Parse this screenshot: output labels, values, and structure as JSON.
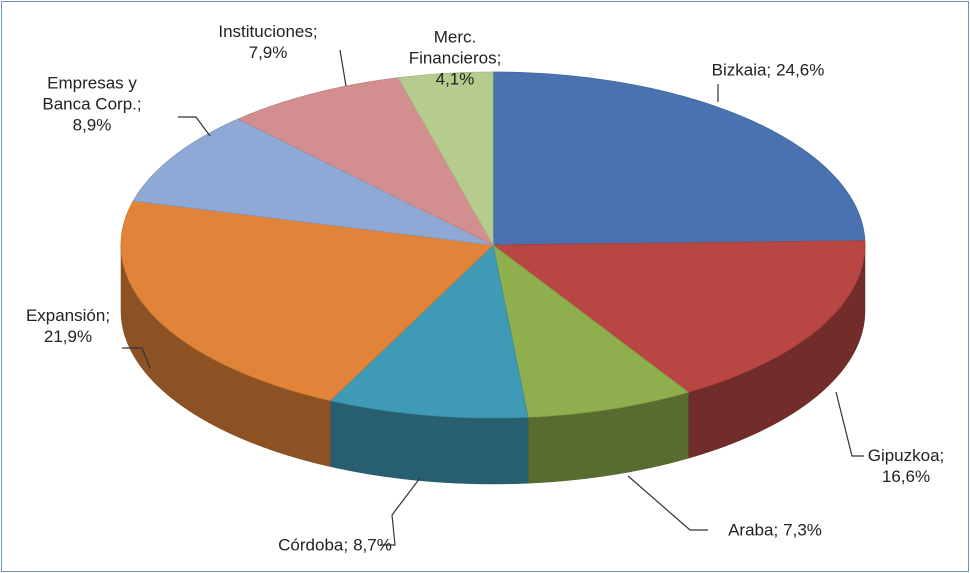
{
  "chart_data": {
    "type": "pie3d",
    "categories": [
      "Bizkaia;",
      "Gipuzkoa;",
      "Araba;",
      "Córdoba;",
      "Expansión;",
      "Empresas y\nBanca Corp.;",
      "Instituciones;",
      "Merc.\nFinancieros;"
    ],
    "values": [
      24.6,
      16.6,
      7.3,
      8.7,
      21.9,
      8.9,
      7.9,
      4.1
    ],
    "value_labels": [
      "24,6%",
      "16,6%",
      "7,3%",
      "8,7%",
      "21,9%",
      "8,9%",
      "7,9%",
      "4,1%"
    ],
    "colors": [
      "#4a72b0",
      "#b84744",
      "#8fae4d",
      "#3f9ab5",
      "#e1843a",
      "#8fa9d6",
      "#d38f8f",
      "#b5cc8e"
    ]
  }
}
